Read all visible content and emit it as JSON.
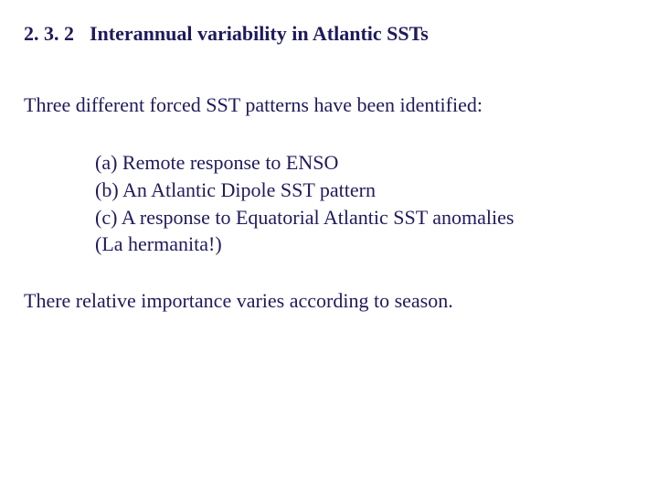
{
  "colors": {
    "text": "#1f1a5c",
    "background": "#ffffff"
  },
  "typography": {
    "family": "Times New Roman",
    "body_fontsize_pt": 17,
    "heading_weight": "bold"
  },
  "section": {
    "number": "2. 3. 2",
    "title": "Interannual variability in Atlantic SSTs"
  },
  "intro": "Three different forced SST patterns have been identified:",
  "items": [
    "(a) Remote response to ENSO",
    "(b) An Atlantic Dipole SST pattern",
    "(c) A response to Equatorial Atlantic SST anomalies",
    "(La hermanita!)"
  ],
  "closing": "There relative importance varies according to season."
}
